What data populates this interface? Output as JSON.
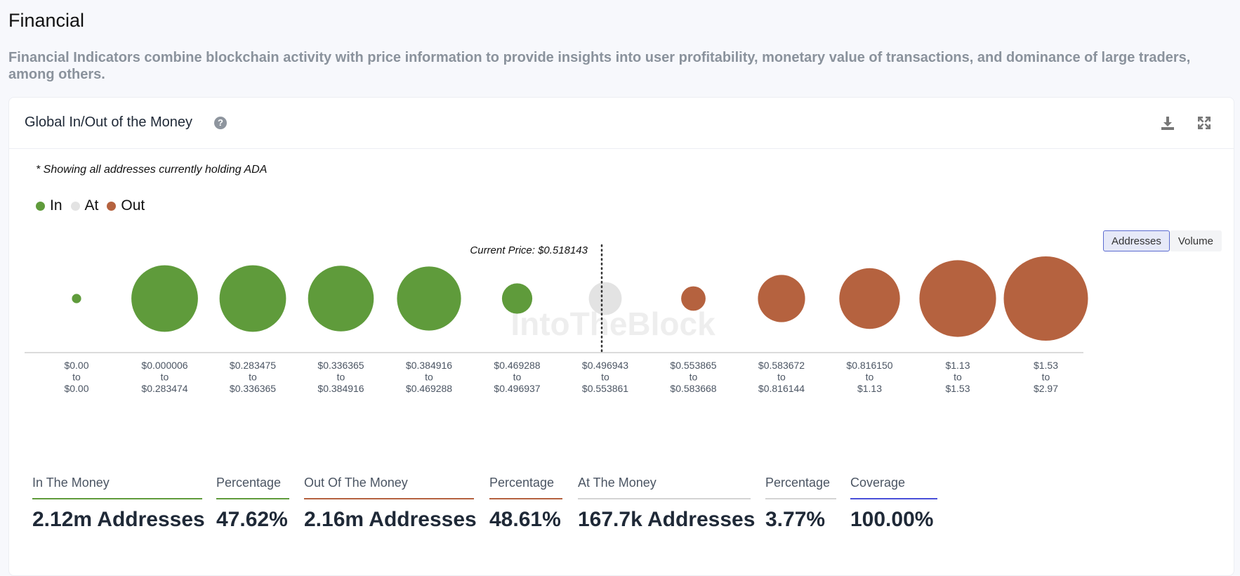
{
  "section": {
    "title": "Financial",
    "description": "Financial Indicators combine blockchain activity with price information to provide insights into user profitability, monetary value of transactions, and dominance of large traders, among others."
  },
  "card": {
    "title": "Global In/Out of the Money",
    "help_symbol": "?",
    "note": "* Showing all addresses currently holding ADA",
    "legend": [
      {
        "label": "In",
        "color": "#5f9b3b"
      },
      {
        "label": "At",
        "color": "#e3e3e3"
      },
      {
        "label": "Out",
        "color": "#b5623f"
      }
    ],
    "toggle": {
      "addresses_label": "Addresses",
      "volume_label": "Volume"
    },
    "watermark": "IntoTheBlock"
  },
  "chart_data": {
    "type": "scatter",
    "title": "Global In/Out of the Money",
    "current_price_label": "Current Price: $0.518143",
    "current_price_bucket_index": 6,
    "buckets": [
      {
        "from": "$0.00",
        "to_word": "to",
        "to": "$0.00",
        "status": "in",
        "relative_size": 0.11
      },
      {
        "from": "$0.000006",
        "to_word": "to",
        "to": "$0.283474",
        "status": "in",
        "relative_size": 0.79
      },
      {
        "from": "$0.283475",
        "to_word": "to",
        "to": "$0.336365",
        "status": "in",
        "relative_size": 0.79
      },
      {
        "from": "$0.336365",
        "to_word": "to",
        "to": "$0.384916",
        "status": "in",
        "relative_size": 0.78
      },
      {
        "from": "$0.384916",
        "to_word": "to",
        "to": "$0.469288",
        "status": "in",
        "relative_size": 0.76
      },
      {
        "from": "$0.469288",
        "to_word": "to",
        "to": "$0.496937",
        "status": "in",
        "relative_size": 0.36
      },
      {
        "from": "$0.496943",
        "to_word": "to",
        "to": "$0.553861",
        "status": "at",
        "relative_size": 0.39
      },
      {
        "from": "$0.553865",
        "to_word": "to",
        "to": "$0.583668",
        "status": "out",
        "relative_size": 0.29
      },
      {
        "from": "$0.583672",
        "to_word": "to",
        "to": "$0.816144",
        "status": "out",
        "relative_size": 0.56
      },
      {
        "from": "$0.816150",
        "to_word": "to",
        "to": "$1.13",
        "status": "out",
        "relative_size": 0.72
      },
      {
        "from": "$1.13",
        "to_word": "to",
        "to": "$1.53",
        "status": "out",
        "relative_size": 0.91
      },
      {
        "from": "$1.53",
        "to_word": "to",
        "to": "$2.97",
        "status": "out",
        "relative_size": 1.0
      }
    ],
    "colors": {
      "in": "#5f9b3b",
      "at": "#e3e3e3",
      "out": "#b5623f",
      "axis": "#cfcfcf"
    }
  },
  "stats": [
    {
      "label": "In The Money",
      "value": "2.12m Addresses",
      "underline": "#5f9b3b"
    },
    {
      "label": "Percentage",
      "value": "47.62%",
      "underline": "#5f9b3b"
    },
    {
      "label": "Out Of The Money",
      "value": "2.16m Addresses",
      "underline": "#b5623f"
    },
    {
      "label": "Percentage",
      "value": "48.61%",
      "underline": "#b5623f"
    },
    {
      "label": "At The Money",
      "value": "167.7k Addresses",
      "underline": "#d4d4d4"
    },
    {
      "label": "Percentage",
      "value": "3.77%",
      "underline": "#d4d4d4"
    },
    {
      "label": "Coverage",
      "value": "100.00%",
      "underline": "#4a4fd8"
    }
  ]
}
